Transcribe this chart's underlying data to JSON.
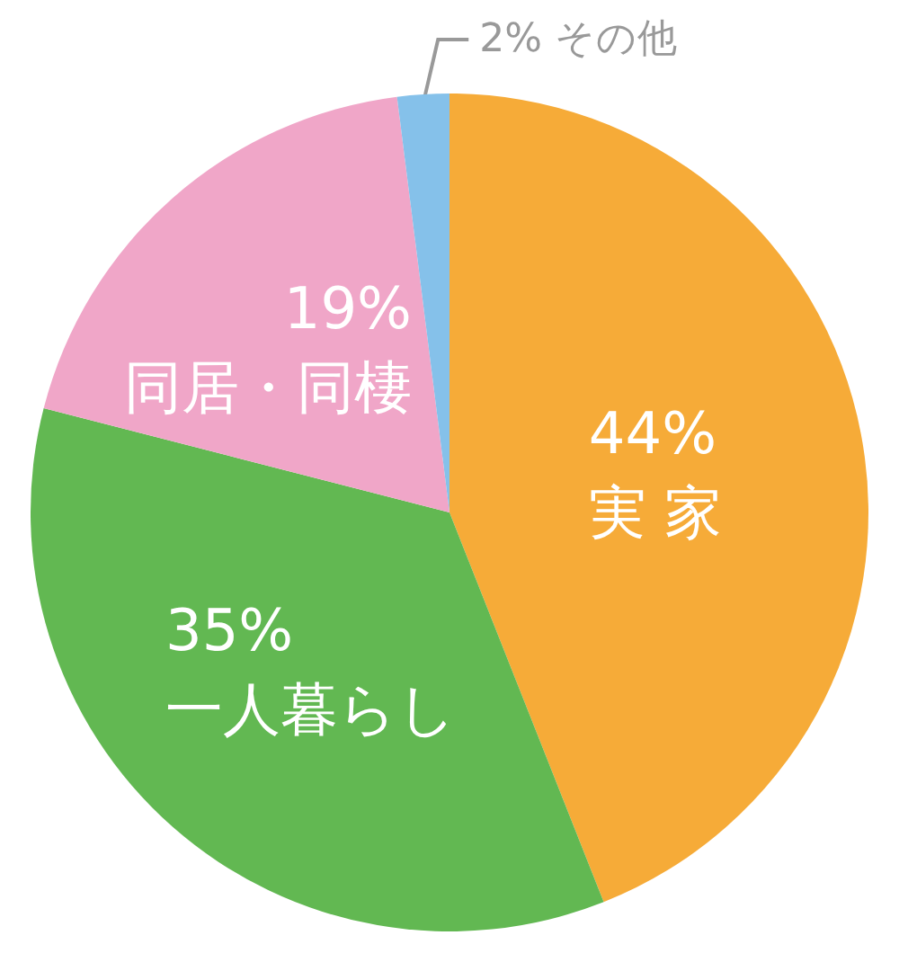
{
  "chart_data": {
    "type": "pie",
    "categories": [
      "実 家",
      "一人暮らし",
      "同居・同棲",
      "その他"
    ],
    "values": [
      44,
      35,
      19,
      2
    ],
    "value_labels": [
      "44%",
      "35%",
      "19%",
      "2%"
    ],
    "colors": [
      "#f6ab38",
      "#62b852",
      "#f0a6c8",
      "#85c1ea"
    ],
    "legend": false
  }
}
